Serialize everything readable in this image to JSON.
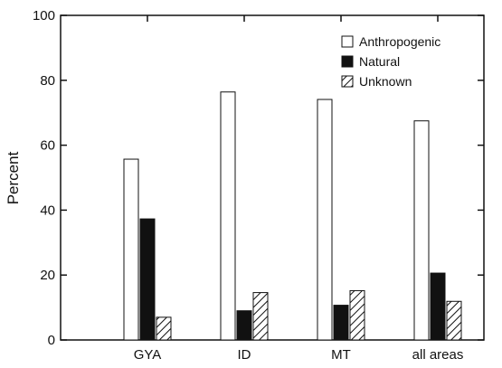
{
  "colors": {
    "axis": "#111111",
    "anthropogenic_fill": "#ffffff",
    "natural_fill": "#111111",
    "unknown_hatch": "#111111"
  },
  "chart_data": {
    "type": "bar",
    "title": "",
    "xlabel": "",
    "ylabel": "Percent",
    "ylim": [
      0,
      100
    ],
    "yticks": [
      0,
      20,
      40,
      60,
      80,
      100
    ],
    "categories": [
      "GYA",
      "ID",
      "MT",
      "all areas"
    ],
    "series": [
      {
        "name": "Anthropogenic",
        "values": [
          55.7,
          76.4,
          74.1,
          67.5
        ]
      },
      {
        "name": "Natural",
        "values": [
          37.3,
          9.0,
          10.7,
          20.6
        ]
      },
      {
        "name": "Unknown",
        "values": [
          7.0,
          14.6,
          15.2,
          11.9
        ]
      }
    ],
    "legend": {
      "position": "top-right"
    },
    "grid": false
  }
}
